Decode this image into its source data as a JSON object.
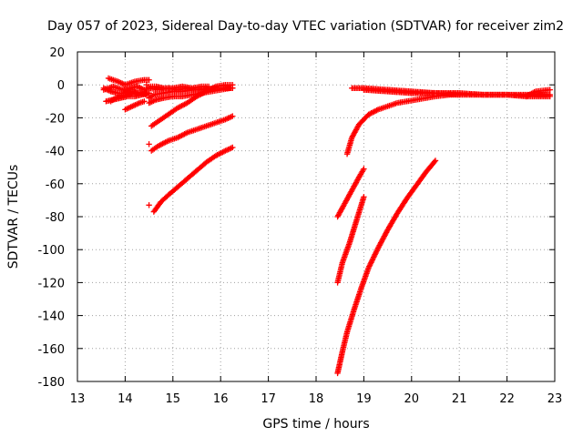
{
  "chart_data": {
    "type": "scatter",
    "title": "Day 057 of 2023, Sidereal Day-to-day VTEC variation (SDTVAR) for receiver zim2",
    "xlabel": "GPS time / hours",
    "ylabel": "SDTVAR / TECUs",
    "xlim": [
      13,
      23
    ],
    "ylim": [
      -180,
      20
    ],
    "xticks": [
      13,
      14,
      15,
      16,
      17,
      18,
      19,
      20,
      21,
      22,
      23
    ],
    "yticks": [
      20,
      0,
      -20,
      -40,
      -60,
      -80,
      -100,
      -120,
      -140,
      -160,
      -180
    ],
    "grid": true,
    "marker": "+",
    "color": "#ff0000",
    "series": [
      {
        "x": [
          13.55,
          13.7,
          13.85,
          14.0,
          14.15,
          14.3,
          14.45,
          14.5
        ],
        "y": [
          -2,
          -4,
          -5,
          -5,
          -4,
          -5,
          -6,
          -5
        ]
      },
      {
        "x": [
          13.55,
          13.65,
          13.75,
          13.85,
          13.95,
          14.1,
          14.25,
          14.4,
          14.5
        ],
        "y": [
          -3,
          -2,
          -1,
          -2,
          -3,
          -2,
          -1,
          -3,
          -2
        ]
      },
      {
        "x": [
          13.65,
          13.75,
          13.85,
          14.0,
          14.2,
          14.4,
          14.5
        ],
        "y": [
          4,
          3,
          2,
          0,
          2,
          3,
          3
        ]
      },
      {
        "x": [
          13.6,
          13.75,
          13.9,
          14.05,
          14.2,
          14.35,
          14.5
        ],
        "y": [
          -10,
          -9,
          -8,
          -7,
          -7,
          -6,
          -5
        ]
      },
      {
        "x": [
          13.7,
          13.8,
          13.9,
          14.0,
          14.1,
          14.2,
          14.3,
          14.45
        ],
        "y": [
          -10,
          -8,
          -7,
          -6,
          -6,
          -5,
          -5,
          -5
        ]
      },
      {
        "x": [
          14.0,
          14.15,
          14.3,
          14.4
        ],
        "y": [
          -15,
          -13,
          -11,
          -10
        ]
      },
      {
        "x": [
          14.45,
          14.5,
          14.65,
          14.8,
          15.0,
          15.2,
          15.4,
          15.6,
          15.75
        ],
        "y": [
          0,
          -1,
          -1,
          -2,
          -2,
          -1,
          -2,
          -1,
          -1
        ]
      },
      {
        "x": [
          14.5,
          14.7,
          14.9,
          15.1,
          15.3,
          15.5,
          15.7
        ],
        "y": [
          -2,
          -3,
          -2,
          -3,
          -2,
          -3,
          -2
        ]
      },
      {
        "x": [
          14.5,
          14.6,
          14.8,
          15.0,
          15.2,
          15.4,
          15.6
        ],
        "y": [
          -8,
          -6,
          -5,
          -4,
          -4,
          -3,
          -3
        ]
      },
      {
        "x": [
          14.5,
          14.65,
          14.8,
          15.0,
          15.2,
          15.4,
          15.6,
          15.8,
          16.0,
          16.2,
          16.25
        ],
        "y": [
          -11,
          -9,
          -8,
          -7,
          -7,
          -6,
          -5,
          -4,
          -3,
          -2,
          -2
        ]
      },
      {
        "x": [
          15.7,
          15.85,
          16.0,
          16.15,
          16.25
        ],
        "y": [
          -3,
          -2,
          -2,
          -2,
          -2
        ]
      },
      {
        "x": [
          14.55,
          14.7,
          14.9,
          15.1,
          15.3,
          15.5,
          15.7,
          15.9,
          16.1,
          16.25
        ],
        "y": [
          -25,
          -22,
          -18,
          -14,
          -11,
          -7,
          -4,
          -1,
          0,
          0
        ]
      },
      {
        "x": [
          14.55,
          14.7,
          14.9,
          15.1,
          15.3,
          15.5,
          15.7,
          15.9,
          16.1,
          16.25
        ],
        "y": [
          -40,
          -37,
          -34,
          -32,
          -29,
          -27,
          -25,
          -23,
          -21,
          -19
        ]
      },
      {
        "x": [
          14.5
        ],
        "y": [
          -36
        ]
      },
      {
        "x": [
          14.6,
          14.75,
          14.9,
          15.1,
          15.3,
          15.5,
          15.7,
          15.9,
          16.1,
          16.25
        ],
        "y": [
          -77,
          -71,
          -67,
          -62,
          -57,
          -52,
          -47,
          -43,
          -40,
          -38
        ]
      },
      {
        "x": [
          14.5
        ],
        "y": [
          -73
        ]
      },
      {
        "x": [
          18.65,
          18.75,
          18.9,
          19.1,
          19.3,
          19.5,
          19.7,
          19.9,
          20.1,
          20.3,
          20.5,
          20.8,
          21.0
        ],
        "y": [
          -42,
          -32,
          -24,
          -18,
          -15,
          -13,
          -11,
          -10,
          -9,
          -8,
          -7,
          -6,
          -6
        ]
      },
      {
        "x": [
          18.75,
          19.0,
          19.5,
          20.0,
          20.5,
          21.0,
          21.5,
          22.0,
          22.5,
          22.9
        ],
        "y": [
          -2,
          -2,
          -3,
          -4,
          -5,
          -5,
          -6,
          -6,
          -6,
          -6
        ]
      },
      {
        "x": [
          19.0,
          19.5,
          20.0,
          20.5,
          21.0,
          21.5,
          22.0,
          22.4,
          22.6,
          22.9
        ],
        "y": [
          -3,
          -4,
          -5,
          -5,
          -6,
          -6,
          -6,
          -7,
          -4,
          -3
        ]
      },
      {
        "x": [
          22.4,
          22.6,
          22.8,
          22.9
        ],
        "y": [
          -7,
          -7,
          -7,
          -7
        ]
      },
      {
        "x": [
          18.45,
          18.6,
          18.75,
          18.9,
          19.0
        ],
        "y": [
          -80,
          -72,
          -64,
          -56,
          -51
        ]
      },
      {
        "x": [
          18.45,
          18.55,
          18.7,
          18.85,
          19.0
        ],
        "y": [
          -120,
          -108,
          -96,
          -82,
          -68
        ]
      },
      {
        "x": [
          18.45,
          18.55,
          18.65,
          18.8,
          18.95,
          19.1,
          19.3,
          19.5,
          19.7,
          19.9,
          20.1,
          20.3,
          20.5
        ],
        "y": [
          -175,
          -162,
          -150,
          -136,
          -123,
          -111,
          -99,
          -88,
          -78,
          -69,
          -61,
          -53,
          -46
        ]
      }
    ]
  }
}
